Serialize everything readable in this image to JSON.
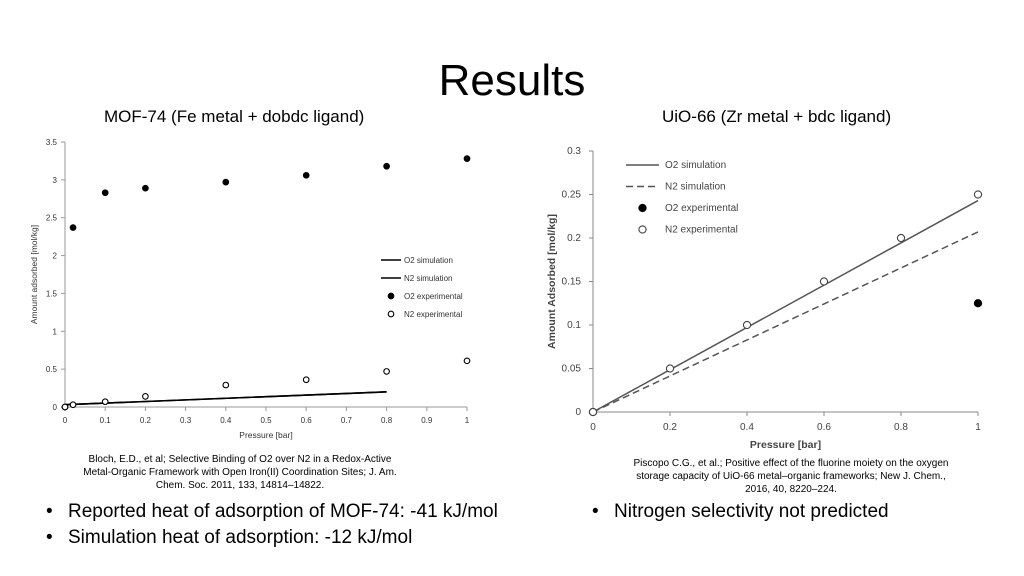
{
  "slide": {
    "title": "Results",
    "left_subtitle": "MOF-74 (Fe metal + dobdc ligand)",
    "right_subtitle": "UiO-66 (Zr metal + bdc ligand)",
    "left_reference": "Bloch, E.D., et al; Selective Binding of O2 over N2 in a Redox-Active Metal-Organic Framework with Open Iron(II) Coordination Sites; J. Am. Chem. Soc. 2011, 133, 14814–14822.",
    "right_reference": "Piscopo C.G., et al.; Positive effect of the fluorine moiety on the oxygen storage capacity of UiO-66 metal–organic frameworks; New J. Chem., 2016, 40, 8220–224.",
    "left_bullets": [
      "Reported heat of adsorption of MOF-74: -41 kJ/mol",
      "Simulation heat of adsorption: -12 kJ/mol"
    ],
    "right_bullets": [
      "Nitrogen selectivity not predicted"
    ]
  },
  "chart_data": [
    {
      "type": "scatter",
      "xlabel": "Pressure [bar]",
      "ylabel": "Amount adsorbed [mol/kg]",
      "xlim": [
        0,
        1
      ],
      "ylim": [
        0,
        3.5
      ],
      "x_ticks": [
        "0",
        "0.1",
        "0.2",
        "0.3",
        "0.4",
        "0.5",
        "0.6",
        "0.7",
        "0.8",
        "0.9",
        "1"
      ],
      "y_ticks": [
        "0",
        "0.5",
        "1",
        "1.5",
        "2",
        "2.5",
        "3",
        "3.5"
      ],
      "legend_position": "right",
      "series": [
        {
          "name": "O2 simulation",
          "style": "line",
          "color": "#000000",
          "x": [
            0,
            0.8
          ],
          "y": [
            0.03,
            0.2
          ]
        },
        {
          "name": "N2 simulation",
          "style": "line",
          "color": "#000000",
          "x": [
            0,
            0.8
          ],
          "y": [
            0.03,
            0.2
          ]
        },
        {
          "name": "O2 experimental",
          "style": "filled-marker",
          "color": "#000000",
          "x": [
            0,
            0.02,
            0.1,
            0.2,
            0.4,
            0.6,
            0.8,
            1.0
          ],
          "y": [
            0.0,
            2.37,
            2.83,
            2.89,
            2.97,
            3.06,
            3.18,
            3.28
          ]
        },
        {
          "name": "N2 experimental",
          "style": "open-marker",
          "color": "#000000",
          "x": [
            0,
            0.02,
            0.1,
            0.2,
            0.4,
            0.6,
            0.8,
            1.0
          ],
          "y": [
            0.0,
            0.03,
            0.07,
            0.14,
            0.29,
            0.36,
            0.47,
            0.61
          ]
        }
      ]
    },
    {
      "type": "scatter",
      "xlabel": "Pressure [bar]",
      "ylabel": "Amount Adsorbed [mol/kg]",
      "xlim": [
        0,
        1
      ],
      "ylim": [
        0,
        0.3
      ],
      "x_ticks": [
        "0",
        "0.2",
        "0.4",
        "0.6",
        "0.8",
        "1"
      ],
      "y_ticks": [
        "0",
        "0.05",
        "0.1",
        "0.15",
        "0.2",
        "0.25",
        "0.3"
      ],
      "legend_position": "top-left",
      "series": [
        {
          "name": "O2 simulation",
          "style": "line",
          "color": "#555555",
          "x": [
            0,
            1
          ],
          "y": [
            0,
            0.243
          ]
        },
        {
          "name": "N2 simulation",
          "style": "dashed-line",
          "color": "#555555",
          "x": [
            0,
            1
          ],
          "y": [
            0,
            0.207
          ]
        },
        {
          "name": "O2 experimental",
          "style": "filled-marker",
          "color": "#000000",
          "x": [
            0,
            1
          ],
          "y": [
            0,
            0.125
          ]
        },
        {
          "name": "N2 experimental",
          "style": "open-marker",
          "color": "#444444",
          "x": [
            0,
            0.2,
            0.4,
            0.6,
            0.8,
            1.0
          ],
          "y": [
            0,
            0.05,
            0.1,
            0.15,
            0.2,
            0.25
          ]
        }
      ]
    }
  ]
}
